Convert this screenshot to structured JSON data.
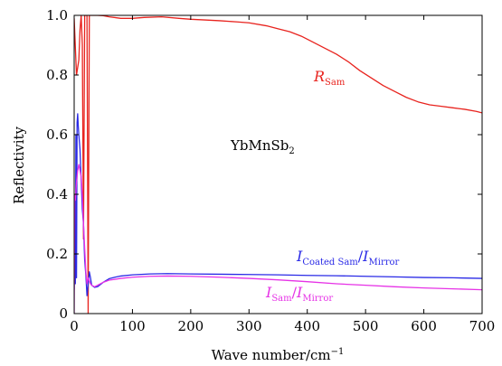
{
  "chart_data": {
    "type": "line",
    "xlabel": "Wave number/cm",
    "xlabel_sup": "−1",
    "ylabel": "Reflectivity",
    "xlim": [
      0,
      700
    ],
    "ylim": [
      0,
      1.0
    ],
    "x_ticks": [
      0,
      100,
      200,
      300,
      400,
      500,
      600,
      700
    ],
    "y_ticks": [
      0,
      0.2,
      0.4,
      0.6,
      0.8,
      1.0
    ],
    "y_tick_labels": [
      "0",
      "0.2",
      "0.4",
      "0.6",
      "0.8",
      "1.0"
    ],
    "grid": false,
    "annotations": {
      "sample": {
        "main": "YbMnSb",
        "sub": "2"
      },
      "r_sam": {
        "main": "R",
        "sub": "Sam"
      },
      "coated": {
        "main1": "I",
        "sub1": "Coated Sam",
        "slash": "/",
        "main2": "I",
        "sub2": "Mirror"
      },
      "isam": {
        "main1": "I",
        "sub1": "Sam",
        "slash": "/",
        "main2": "I",
        "sub2": "Mirror"
      }
    },
    "series": [
      {
        "color": "#e8231e",
        "x": [
          0,
          4,
          8,
          10,
          12,
          14,
          16,
          18,
          20,
          22,
          24,
          26,
          30,
          35,
          40,
          50,
          60,
          80,
          100,
          120,
          150,
          180,
          200,
          220,
          250,
          280,
          300,
          330,
          350,
          370,
          390,
          410,
          430,
          450,
          470,
          490,
          510,
          530,
          550,
          570,
          590,
          610,
          630,
          650,
          670,
          690,
          700
        ],
        "y": [
          0.99,
          0.8,
          0.85,
          0.95,
          1.0,
          0.9,
          0.25,
          1.0,
          1.0,
          1.0,
          0.0,
          1.0,
          1.0,
          1.0,
          1.0,
          0.999,
          0.995,
          0.99,
          0.99,
          0.993,
          0.995,
          0.99,
          0.987,
          0.985,
          0.982,
          0.978,
          0.975,
          0.965,
          0.955,
          0.945,
          0.93,
          0.91,
          0.89,
          0.87,
          0.845,
          0.815,
          0.79,
          0.765,
          0.745,
          0.725,
          0.71,
          0.7,
          0.695,
          0.69,
          0.685,
          0.678,
          0.673
        ]
      },
      {
        "color": "#2a2ae6",
        "x": [
          0,
          1,
          2,
          3,
          4,
          5,
          6,
          7,
          8,
          10,
          12,
          14,
          16,
          18,
          20,
          22,
          24,
          26,
          28,
          30,
          35,
          40,
          50,
          60,
          70,
          80,
          100,
          130,
          160,
          200,
          250,
          300,
          350,
          400,
          450,
          500,
          550,
          600,
          650,
          700
        ],
        "y": [
          0.08,
          0.28,
          0.1,
          0.6,
          0.12,
          0.64,
          0.67,
          0.63,
          0.6,
          0.55,
          0.45,
          0.35,
          0.3,
          0.18,
          0.13,
          0.06,
          0.1,
          0.14,
          0.12,
          0.095,
          0.088,
          0.09,
          0.105,
          0.117,
          0.122,
          0.126,
          0.13,
          0.133,
          0.134,
          0.133,
          0.132,
          0.131,
          0.13,
          0.128,
          0.127,
          0.125,
          0.123,
          0.121,
          0.12,
          0.118
        ]
      },
      {
        "color": "#e632e6",
        "x": [
          0,
          1,
          2,
          4,
          6,
          8,
          10,
          12,
          14,
          16,
          18,
          20,
          22,
          24,
          26,
          28,
          30,
          35,
          40,
          50,
          60,
          80,
          100,
          130,
          160,
          200,
          250,
          300,
          350,
          400,
          450,
          500,
          550,
          600,
          650,
          700
        ],
        "y": [
          0.0,
          0.4,
          0.38,
          0.44,
          0.48,
          0.5,
          0.48,
          0.46,
          0.4,
          0.3,
          0.22,
          0.14,
          0.1,
          0.12,
          0.11,
          0.1,
          0.095,
          0.09,
          0.095,
          0.105,
          0.112,
          0.118,
          0.122,
          0.125,
          0.126,
          0.125,
          0.122,
          0.118,
          0.113,
          0.107,
          0.1,
          0.095,
          0.09,
          0.086,
          0.083,
          0.08
        ]
      }
    ]
  }
}
